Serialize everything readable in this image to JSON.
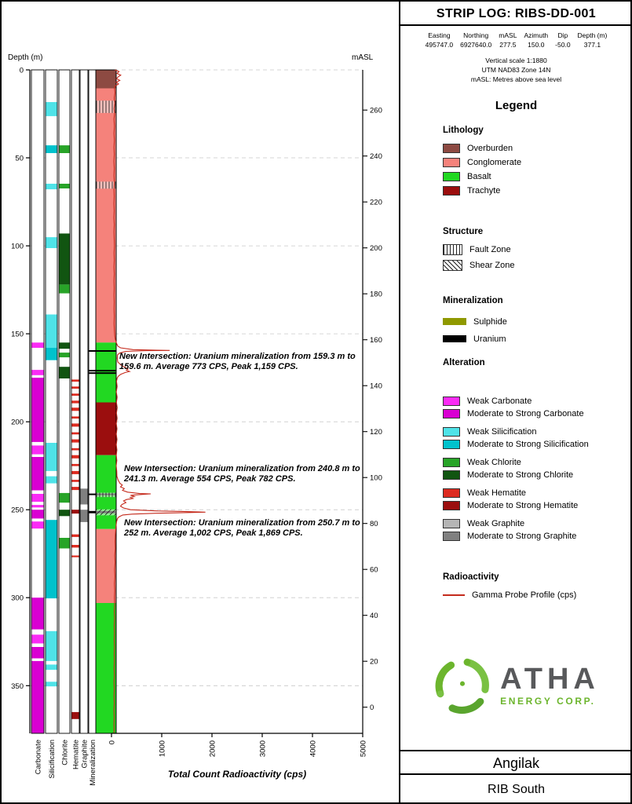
{
  "header": {
    "title": "STRIP LOG: RIBS-DD-001",
    "collar": [
      {
        "label": "Easting",
        "value": "495747.0"
      },
      {
        "label": "Northing",
        "value": "6927640.0"
      },
      {
        "label": "mASL",
        "value": "277.5"
      },
      {
        "label": "Azimuth",
        "value": "150.0"
      },
      {
        "label": "Dip",
        "value": "-50.0"
      },
      {
        "label": "Depth (m)",
        "value": "377.1"
      }
    ],
    "notes": [
      "Vertical scale 1:1880",
      "UTM NAD83 Zone 14N",
      "mASL: Metres above sea level"
    ]
  },
  "legend": {
    "title": "Legend",
    "lithology": {
      "title": "Lithology",
      "items": [
        {
          "label": "Overburden",
          "color": "#8d4a42"
        },
        {
          "label": "Conglomerate",
          "color": "#f5827b"
        },
        {
          "label": "Basalt",
          "color": "#22d822"
        },
        {
          "label": "Trachyte",
          "color": "#9b0e0e"
        }
      ]
    },
    "structure": {
      "title": "Structure",
      "items": [
        {
          "label": "Fault Zone",
          "pattern": "vertical-hatch"
        },
        {
          "label": "Shear Zone",
          "pattern": "diagonal-hatch"
        }
      ]
    },
    "mineralization": {
      "title": "Mineralization",
      "items": [
        {
          "label": "Sulphide",
          "color": "#8f9900"
        },
        {
          "label": "Uranium",
          "color": "#000000"
        }
      ]
    },
    "alteration": {
      "title": "Alteration",
      "groups": [
        {
          "weak_label": "Weak Carbonate",
          "strong_label": "Moderate to Strong Carbonate",
          "weak_color": "#fa2bf5",
          "strong_color": "#d900d2"
        },
        {
          "weak_label": "Weak Silicification",
          "strong_label": "Moderate to Strong Silicification",
          "weak_color": "#4fe3e8",
          "strong_color": "#00c2cc"
        },
        {
          "weak_label": "Weak Chlorite",
          "strong_label": "Moderate to Strong Chlorite",
          "weak_color": "#28a428",
          "strong_color": "#115511"
        },
        {
          "weak_label": "Weak Hematite",
          "strong_label": "Moderate to Strong Hematite",
          "weak_color": "#dd2b20",
          "strong_color": "#9b0e0e"
        },
        {
          "weak_label": "Weak Graphite",
          "strong_label": "Moderate to Strong Graphite",
          "weak_color": "#b5b5b5",
          "strong_color": "#808080"
        }
      ]
    },
    "radioactivity": {
      "title": "Radioactivity",
      "items": [
        {
          "label": "Gamma Probe Profile (cps)",
          "color": "#c42a1c"
        }
      ]
    }
  },
  "logo": {
    "name": "ATHA",
    "sub": "ENERGY CORP.",
    "green": "#6cb52d",
    "dark": "#58595b"
  },
  "footer": {
    "project": "Angilak",
    "area": "RIB South"
  },
  "annotations": [
    {
      "text": "New Intersection: Uranium mineralization from 159.3 m to 159.6 m. Average 773 CPS, Peak 1,159 CPS."
    },
    {
      "text": "New Intersection: Uranium mineralization from 240.8 m to 241.3 m. Average 554 CPS, Peak 782 CPS."
    },
    {
      "text": "New Intersection: Uranium mineralization from 250.7 m to 252 m. Average 1,002 CPS, Peak 1,869 CPS."
    }
  ],
  "chart_data": {
    "type": "line",
    "title": "Strip log RIBS-DD-001",
    "xlabel": "Total Count Radioactivity (cps)",
    "ylabel": "Depth (m)",
    "x_axis": {
      "min": 0,
      "max": 5000,
      "step": 1000
    },
    "depth_axis": {
      "label": "Depth (m)",
      "min": 0,
      "max": 377.1,
      "tick_step": 50
    },
    "masl_axis": {
      "label": "mASL",
      "min": 0,
      "max": 260,
      "step": 20,
      "collar_masl": 277.5,
      "dip_deg": -50
    },
    "gamma_profile": {
      "name": "Gamma Probe Profile (cps)",
      "points": [
        [
          0,
          70
        ],
        [
          1,
          150
        ],
        [
          2,
          110
        ],
        [
          3,
          185
        ],
        [
          4,
          130
        ],
        [
          5,
          100
        ],
        [
          6,
          165
        ],
        [
          7,
          95
        ],
        [
          8,
          140
        ],
        [
          9,
          85
        ],
        [
          10,
          60
        ],
        [
          13,
          70
        ],
        [
          16,
          55
        ],
        [
          19,
          65
        ],
        [
          22,
          52
        ],
        [
          25,
          62
        ],
        [
          28,
          50
        ],
        [
          32,
          60
        ],
        [
          36,
          50
        ],
        [
          40,
          58
        ],
        [
          44,
          50
        ],
        [
          48,
          57
        ],
        [
          52,
          48
        ],
        [
          56,
          56
        ],
        [
          60,
          50
        ],
        [
          64,
          58
        ],
        [
          68,
          50
        ],
        [
          72,
          55
        ],
        [
          76,
          48
        ],
        [
          80,
          55
        ],
        [
          84,
          48
        ],
        [
          88,
          56
        ],
        [
          92,
          50
        ],
        [
          96,
          55
        ],
        [
          100,
          60
        ],
        [
          104,
          52
        ],
        [
          108,
          57
        ],
        [
          112,
          50
        ],
        [
          116,
          56
        ],
        [
          120,
          50
        ],
        [
          124,
          55
        ],
        [
          128,
          50
        ],
        [
          132,
          55
        ],
        [
          136,
          52
        ],
        [
          140,
          57
        ],
        [
          144,
          52
        ],
        [
          148,
          58
        ],
        [
          151,
          65
        ],
        [
          153,
          75
        ],
        [
          155,
          95
        ],
        [
          157,
          125
        ],
        [
          158,
          180
        ],
        [
          159,
          430
        ],
        [
          159.3,
          920
        ],
        [
          159.45,
          1159
        ],
        [
          159.6,
          700
        ],
        [
          160,
          280
        ],
        [
          161,
          160
        ],
        [
          162,
          120
        ],
        [
          164,
          115
        ],
        [
          166,
          125
        ],
        [
          168,
          200
        ],
        [
          169,
          265
        ],
        [
          170,
          330
        ],
        [
          170.7,
          295
        ],
        [
          171.4,
          360
        ],
        [
          172,
          275
        ],
        [
          173,
          185
        ],
        [
          174,
          140
        ],
        [
          175,
          115
        ],
        [
          177,
          100
        ],
        [
          180,
          112
        ],
        [
          183,
          96
        ],
        [
          186,
          112
        ],
        [
          189,
          98
        ],
        [
          192,
          114
        ],
        [
          195,
          98
        ],
        [
          198,
          112
        ],
        [
          201,
          96
        ],
        [
          204,
          110
        ],
        [
          207,
          96
        ],
        [
          210,
          110
        ],
        [
          213,
          95
        ],
        [
          216,
          108
        ],
        [
          219,
          96
        ],
        [
          222,
          106
        ],
        [
          225,
          94
        ],
        [
          228,
          104
        ],
        [
          231,
          108
        ],
        [
          233,
          130
        ],
        [
          235,
          168
        ],
        [
          236,
          215
        ],
        [
          237,
          180
        ],
        [
          238,
          255
        ],
        [
          239,
          220
        ],
        [
          240,
          320
        ],
        [
          240.8,
          560
        ],
        [
          241,
          782
        ],
        [
          241.3,
          615
        ],
        [
          241.8,
          380
        ],
        [
          242.5,
          455
        ],
        [
          243,
          375
        ],
        [
          243.6,
          425
        ],
        [
          244.2,
          300
        ],
        [
          245,
          240
        ],
        [
          246,
          288
        ],
        [
          247,
          210
        ],
        [
          248,
          180
        ],
        [
          249,
          240
        ],
        [
          250,
          380
        ],
        [
          250.7,
          920
        ],
        [
          251,
          1430
        ],
        [
          251.4,
          1869
        ],
        [
          251.8,
          1280
        ],
        [
          252,
          880
        ],
        [
          252.5,
          410
        ],
        [
          253,
          225
        ],
        [
          254,
          150
        ],
        [
          255,
          118
        ],
        [
          257,
          100
        ],
        [
          260,
          88
        ],
        [
          264,
          78
        ],
        [
          268,
          72
        ],
        [
          272,
          76
        ],
        [
          276,
          66
        ],
        [
          280,
          72
        ],
        [
          284,
          62
        ],
        [
          288,
          68
        ],
        [
          292,
          60
        ],
        [
          296,
          66
        ],
        [
          300,
          60
        ],
        [
          304,
          64
        ],
        [
          308,
          56
        ],
        [
          312,
          62
        ],
        [
          316,
          55
        ],
        [
          320,
          60
        ],
        [
          324,
          54
        ],
        [
          328,
          60
        ],
        [
          332,
          54
        ],
        [
          336,
          58
        ],
        [
          340,
          53
        ],
        [
          344,
          58
        ],
        [
          348,
          52
        ],
        [
          352,
          57
        ],
        [
          356,
          51
        ],
        [
          360,
          56
        ],
        [
          364,
          50
        ],
        [
          368,
          55
        ],
        [
          372,
          50
        ],
        [
          375,
          53
        ],
        [
          377.1,
          48
        ]
      ]
    },
    "lithology_intervals": [
      {
        "from": 0,
        "to": 10.5,
        "unit": "Overburden"
      },
      {
        "from": 10.5,
        "to": 155,
        "unit": "Conglomerate"
      },
      {
        "from": 155,
        "to": 189,
        "unit": "Basalt"
      },
      {
        "from": 189,
        "to": 219,
        "unit": "Trachyte"
      },
      {
        "from": 219,
        "to": 261,
        "unit": "Basalt"
      },
      {
        "from": 261,
        "to": 303,
        "unit": "Conglomerate"
      },
      {
        "from": 303,
        "to": 377.1,
        "unit": "Basalt"
      }
    ],
    "alteration_columns": [
      {
        "name": "Carbonate",
        "intervals": [
          {
            "from": 155,
            "to": 158,
            "grade": "weak"
          },
          {
            "from": 170.5,
            "to": 173.5,
            "grade": "weak"
          },
          {
            "from": 175,
            "to": 211.5,
            "grade": "strong"
          },
          {
            "from": 213.5,
            "to": 218.5,
            "grade": "weak"
          },
          {
            "from": 220,
            "to": 239,
            "grade": "strong"
          },
          {
            "from": 241,
            "to": 245.5,
            "grade": "weak"
          },
          {
            "from": 247.3,
            "to": 248.7,
            "grade": "weak"
          },
          {
            "from": 250,
            "to": 255,
            "grade": "strong"
          },
          {
            "from": 256.7,
            "to": 260.7,
            "grade": "weak"
          },
          {
            "from": 300,
            "to": 318,
            "grade": "strong"
          },
          {
            "from": 321,
            "to": 326,
            "grade": "weak"
          },
          {
            "from": 328,
            "to": 334.5,
            "grade": "strong"
          },
          {
            "from": 336,
            "to": 377.1,
            "grade": "strong"
          }
        ]
      },
      {
        "name": "Silicification",
        "intervals": [
          {
            "from": 18.3,
            "to": 26.3,
            "grade": "weak"
          },
          {
            "from": 42.9,
            "to": 47.3,
            "grade": "strong"
          },
          {
            "from": 64.7,
            "to": 67.9,
            "grade": "weak"
          },
          {
            "from": 95.1,
            "to": 101.3,
            "grade": "weak"
          },
          {
            "from": 139,
            "to": 158,
            "grade": "weak"
          },
          {
            "from": 158,
            "to": 165,
            "grade": "strong"
          },
          {
            "from": 212,
            "to": 228,
            "grade": "weak"
          },
          {
            "from": 231,
            "to": 235,
            "grade": "weak"
          },
          {
            "from": 255.8,
            "to": 300.4,
            "grade": "strong"
          },
          {
            "from": 319,
            "to": 336,
            "grade": "weak"
          },
          {
            "from": 338,
            "to": 341,
            "grade": "weak"
          },
          {
            "from": 347.8,
            "to": 350.4,
            "grade": "weak"
          }
        ]
      },
      {
        "name": "Chlorite",
        "intervals": [
          {
            "from": 42.9,
            "to": 47.3,
            "grade": "weak"
          },
          {
            "from": 64.7,
            "to": 67.4,
            "grade": "weak"
          },
          {
            "from": 93,
            "to": 122,
            "grade": "strong"
          },
          {
            "from": 122,
            "to": 127,
            "grade": "weak"
          },
          {
            "from": 155,
            "to": 158.5,
            "grade": "strong"
          },
          {
            "from": 160.7,
            "to": 163.4,
            "grade": "weak"
          },
          {
            "from": 168.8,
            "to": 175.4,
            "grade": "strong"
          },
          {
            "from": 240.5,
            "to": 246,
            "grade": "weak"
          },
          {
            "from": 250,
            "to": 253.6,
            "grade": "strong"
          },
          {
            "from": 266,
            "to": 272,
            "grade": "weak"
          }
        ]
      },
      {
        "name": "Hematite",
        "intervals": [
          {
            "from": 176,
            "to": 177.2,
            "grade": "weak"
          },
          {
            "from": 180,
            "to": 181.2,
            "grade": "weak"
          },
          {
            "from": 184,
            "to": 185.2,
            "grade": "weak"
          },
          {
            "from": 188,
            "to": 189.5,
            "grade": "weak"
          },
          {
            "from": 192,
            "to": 193.8,
            "grade": "weak"
          },
          {
            "from": 197,
            "to": 198.2,
            "grade": "weak"
          },
          {
            "from": 201,
            "to": 202.8,
            "grade": "weak"
          },
          {
            "from": 206,
            "to": 207.2,
            "grade": "weak"
          },
          {
            "from": 210,
            "to": 211.8,
            "grade": "weak"
          },
          {
            "from": 215,
            "to": 216.2,
            "grade": "weak"
          },
          {
            "from": 219,
            "to": 220.8,
            "grade": "weak"
          },
          {
            "from": 224,
            "to": 225.2,
            "grade": "weak"
          },
          {
            "from": 228,
            "to": 229.8,
            "grade": "weak"
          },
          {
            "from": 233,
            "to": 234.2,
            "grade": "weak"
          },
          {
            "from": 237,
            "to": 238.8,
            "grade": "weak"
          },
          {
            "from": 250,
            "to": 252.2,
            "grade": "strong"
          },
          {
            "from": 264,
            "to": 265.5,
            "grade": "weak"
          },
          {
            "from": 270,
            "to": 271.5,
            "grade": "weak"
          },
          {
            "from": 276,
            "to": 277,
            "grade": "weak"
          },
          {
            "from": 365,
            "to": 369,
            "grade": "strong"
          }
        ]
      },
      {
        "name": "Graphite",
        "intervals": [
          {
            "from": 238,
            "to": 247,
            "grade": "strong"
          },
          {
            "from": 250,
            "to": 257,
            "grade": "strong"
          }
        ]
      }
    ],
    "mineralization_column": {
      "name": "Mineralization",
      "intervals": [
        {
          "from": 159.3,
          "to": 159.6,
          "type": "Uranium"
        },
        {
          "from": 170.5,
          "to": 171.0,
          "type": "Uranium"
        },
        {
          "from": 171.9,
          "to": 172.3,
          "type": "Uranium"
        },
        {
          "from": 240.8,
          "to": 241.3,
          "type": "Uranium"
        },
        {
          "from": 250.7,
          "to": 252,
          "type": "Uranium"
        }
      ]
    },
    "structure_intervals": [
      {
        "from": 17.5,
        "to": 24.5,
        "type": "Fault Zone"
      },
      {
        "from": 63.5,
        "to": 67.5,
        "type": "Fault Zone"
      },
      {
        "from": 240.3,
        "to": 242.8,
        "type": "Fault Zone"
      },
      {
        "from": 249.8,
        "to": 253.2,
        "type": "Shear Zone"
      }
    ]
  }
}
